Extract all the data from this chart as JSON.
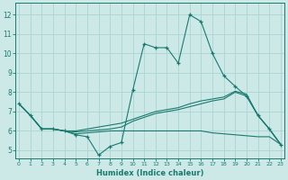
{
  "title": "",
  "xlabel": "Humidex (Indice chaleur)",
  "ylabel": "",
  "background_color": "#cce9e8",
  "grid_color": "#aad4d2",
  "line_color": "#1a7a6e",
  "x_ticks": [
    0,
    1,
    2,
    3,
    4,
    5,
    6,
    7,
    8,
    9,
    10,
    11,
    12,
    13,
    14,
    15,
    16,
    17,
    18,
    19,
    20,
    21,
    22,
    23
  ],
  "y_ticks": [
    5,
    6,
    7,
    8,
    9,
    10,
    11,
    12
  ],
  "ylim": [
    4.6,
    12.6
  ],
  "xlim": [
    -0.3,
    23.3
  ],
  "series_main": {
    "x": [
      0,
      1,
      2,
      3,
      4,
      5,
      6,
      7,
      8,
      9,
      10,
      11,
      12,
      13,
      14,
      15,
      16,
      17,
      18,
      19,
      20,
      21,
      22,
      23
    ],
    "y": [
      7.4,
      6.8,
      6.1,
      6.1,
      6.0,
      5.8,
      5.7,
      4.75,
      5.2,
      5.4,
      8.1,
      10.5,
      10.3,
      10.3,
      9.5,
      12.0,
      11.65,
      10.0,
      8.85,
      8.3,
      7.8,
      6.8,
      6.1,
      5.3
    ]
  },
  "series_trend": [
    {
      "x": [
        0,
        1,
        2,
        3,
        4,
        5,
        6,
        7,
        8,
        9,
        10,
        11,
        12,
        13,
        14,
        15,
        16,
        17,
        18,
        19,
        20,
        21,
        22,
        23
      ],
      "y": [
        7.4,
        6.8,
        6.1,
        6.1,
        6.0,
        5.95,
        6.0,
        6.05,
        6.1,
        6.2,
        6.5,
        6.7,
        6.9,
        7.0,
        7.1,
        7.25,
        7.4,
        7.55,
        7.65,
        8.0,
        7.8,
        6.8,
        6.1,
        5.3
      ]
    },
    {
      "x": [
        0,
        1,
        2,
        3,
        4,
        5,
        6,
        7,
        8,
        9,
        10,
        11,
        12,
        13,
        14,
        15,
        16,
        17,
        18,
        19,
        20,
        21,
        22,
        23
      ],
      "y": [
        7.4,
        6.8,
        6.1,
        6.1,
        6.0,
        6.0,
        6.1,
        6.2,
        6.3,
        6.4,
        6.6,
        6.8,
        7.0,
        7.1,
        7.2,
        7.4,
        7.55,
        7.65,
        7.75,
        8.05,
        7.9,
        6.8,
        6.1,
        5.3
      ]
    },
    {
      "x": [
        0,
        1,
        2,
        3,
        4,
        5,
        6,
        7,
        8,
        9,
        10,
        11,
        12,
        13,
        14,
        15,
        16,
        17,
        18,
        19,
        20,
        21,
        22,
        23
      ],
      "y": [
        7.4,
        6.8,
        6.1,
        6.1,
        6.0,
        5.85,
        5.9,
        5.95,
        6.0,
        6.0,
        6.0,
        6.0,
        6.0,
        6.0,
        6.0,
        6.0,
        6.0,
        5.9,
        5.85,
        5.8,
        5.75,
        5.7,
        5.7,
        5.3
      ]
    }
  ]
}
